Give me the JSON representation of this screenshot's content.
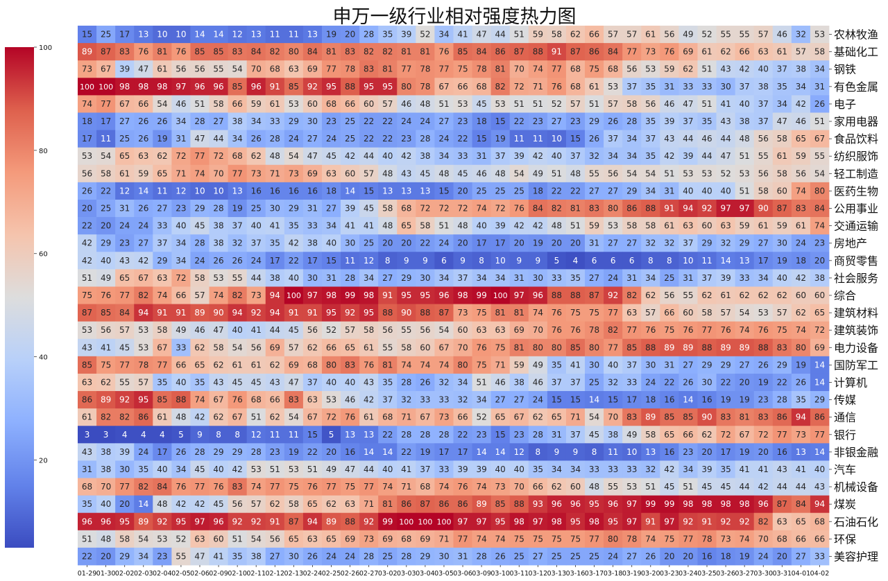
{
  "chart_data": {
    "type": "heatmap",
    "title": "申万一级行业相对强度热力图",
    "colormap": "coolwarm",
    "vmin": 3,
    "vmax": 100,
    "colorbar_ticks": [
      20,
      40,
      60,
      80,
      100
    ],
    "x": [
      "01-29",
      "01-30",
      "02-02",
      "02-03",
      "02-04",
      "02-05",
      "02-06",
      "02-09",
      "02-10",
      "02-11",
      "02-12",
      "02-13",
      "02-24",
      "02-25",
      "02-26",
      "02-27",
      "03-02",
      "03-03",
      "03-04",
      "03-05",
      "03-06",
      "03-09",
      "03-10",
      "03-11",
      "03-12",
      "03-13",
      "03-16",
      "03-17",
      "03-18",
      "03-19",
      "03-20",
      "03-23",
      "03-24",
      "03-25",
      "03-26",
      "03-27",
      "03-30",
      "03-31",
      "04-01",
      "04-02"
    ],
    "y": [
      "农林牧渔",
      "基础化工",
      "钢铁",
      "有色金属",
      "电子",
      "家用电器",
      "食品饮料",
      "纺织服饰",
      "轻工制造",
      "医药生物",
      "公用事业",
      "交通运输",
      "房地产",
      "商贸零售",
      "社会服务",
      "综合",
      "建筑材料",
      "建筑装饰",
      "电力设备",
      "国防军工",
      "计算机",
      "传媒",
      "通信",
      "银行",
      "非银金融",
      "汽车",
      "机械设备",
      "煤炭",
      "石油石化",
      "环保",
      "美容护理"
    ],
    "values": [
      [
        15,
        25,
        17,
        13,
        10,
        10,
        14,
        14,
        12,
        13,
        11,
        11,
        13,
        19,
        20,
        28,
        35,
        39,
        52,
        34,
        41,
        47,
        44,
        51,
        59,
        58,
        62,
        66,
        57,
        57,
        61,
        56,
        49,
        52,
        55,
        55,
        57,
        46,
        32,
        53
      ],
      [
        89,
        87,
        83,
        76,
        81,
        76,
        85,
        85,
        83,
        84,
        82,
        80,
        84,
        81,
        83,
        82,
        82,
        81,
        81,
        76,
        85,
        84,
        86,
        87,
        88,
        91,
        87,
        86,
        84,
        77,
        73,
        76,
        69,
        61,
        62,
        66,
        63,
        61,
        57,
        58
      ],
      [
        73,
        67,
        39,
        47,
        61,
        56,
        56,
        55,
        54,
        70,
        68,
        63,
        69,
        77,
        78,
        83,
        81,
        77,
        78,
        77,
        75,
        78,
        81,
        70,
        74,
        77,
        68,
        75,
        68,
        56,
        53,
        59,
        62,
        51,
        43,
        42,
        40,
        37,
        38,
        34
      ],
      [
        100,
        100,
        98,
        98,
        98,
        97,
        96,
        96,
        85,
        96,
        91,
        85,
        92,
        95,
        88,
        95,
        95,
        80,
        78,
        67,
        66,
        68,
        82,
        72,
        71,
        76,
        68,
        61,
        53,
        37,
        35,
        31,
        33,
        33,
        30,
        37,
        38,
        35,
        34,
        31
      ],
      [
        74,
        77,
        67,
        66,
        54,
        46,
        51,
        58,
        66,
        59,
        61,
        53,
        60,
        68,
        66,
        60,
        57,
        46,
        48,
        51,
        53,
        45,
        53,
        51,
        51,
        52,
        57,
        51,
        57,
        58,
        56,
        46,
        47,
        51,
        41,
        40,
        37,
        34,
        42,
        26
      ],
      [
        18,
        17,
        27,
        26,
        26,
        34,
        28,
        27,
        38,
        34,
        33,
        29,
        30,
        23,
        25,
        22,
        22,
        24,
        24,
        27,
        23,
        18,
        15,
        22,
        23,
        27,
        23,
        29,
        26,
        28,
        35,
        39,
        37,
        35,
        43,
        38,
        37,
        47,
        46,
        51
      ],
      [
        17,
        11,
        25,
        26,
        19,
        31,
        47,
        44,
        34,
        26,
        28,
        24,
        27,
        24,
        25,
        22,
        22,
        23,
        28,
        24,
        22,
        15,
        19,
        11,
        11,
        10,
        15,
        26,
        37,
        34,
        37,
        43,
        44,
        46,
        44,
        48,
        56,
        58,
        65,
        67
      ],
      [
        53,
        54,
        65,
        63,
        62,
        72,
        77,
        72,
        68,
        62,
        48,
        54,
        47,
        45,
        42,
        44,
        40,
        42,
        38,
        34,
        33,
        31,
        37,
        39,
        42,
        40,
        37,
        32,
        34,
        34,
        35,
        42,
        39,
        44,
        47,
        51,
        55,
        61,
        59,
        55
      ],
      [
        56,
        58,
        61,
        59,
        65,
        71,
        74,
        70,
        77,
        73,
        71,
        73,
        69,
        63,
        60,
        57,
        48,
        43,
        45,
        48,
        45,
        46,
        48,
        54,
        49,
        51,
        48,
        55,
        56,
        54,
        54,
        51,
        53,
        53,
        52,
        53,
        56,
        58,
        56,
        54
      ],
      [
        26,
        22,
        12,
        14,
        11,
        12,
        10,
        10,
        13,
        16,
        16,
        16,
        16,
        18,
        14,
        15,
        13,
        13,
        13,
        15,
        20,
        25,
        25,
        25,
        18,
        22,
        22,
        27,
        27,
        29,
        34,
        31,
        40,
        40,
        40,
        51,
        58,
        60,
        74,
        80
      ],
      [
        20,
        25,
        31,
        26,
        27,
        23,
        29,
        28,
        19,
        25,
        30,
        29,
        31,
        27,
        39,
        45,
        58,
        68,
        72,
        72,
        72,
        74,
        72,
        76,
        84,
        82,
        81,
        83,
        80,
        86,
        88,
        91,
        94,
        92,
        97,
        97,
        90,
        87,
        83,
        84
      ],
      [
        22,
        20,
        24,
        24,
        33,
        40,
        45,
        38,
        37,
        40,
        41,
        35,
        33,
        34,
        41,
        41,
        48,
        65,
        58,
        51,
        48,
        40,
        39,
        42,
        42,
        48,
        51,
        59,
        53,
        58,
        58,
        61,
        63,
        60,
        63,
        59,
        61,
        59,
        61,
        74
      ],
      [
        42,
        29,
        23,
        27,
        37,
        34,
        28,
        38,
        32,
        37,
        35,
        42,
        38,
        40,
        30,
        25,
        20,
        20,
        22,
        24,
        20,
        17,
        17,
        20,
        19,
        20,
        20,
        31,
        27,
        27,
        32,
        32,
        37,
        29,
        32,
        29,
        27,
        30,
        24,
        23
      ],
      [
        42,
        40,
        43,
        42,
        29,
        34,
        24,
        26,
        26,
        24,
        17,
        22,
        17,
        15,
        11,
        12,
        8,
        9,
        9,
        6,
        9,
        8,
        10,
        9,
        9,
        5,
        4,
        6,
        6,
        6,
        8,
        8,
        10,
        11,
        14,
        13,
        17,
        19,
        18,
        20
      ],
      [
        51,
        49,
        65,
        67,
        63,
        72,
        58,
        53,
        55,
        44,
        38,
        40,
        30,
        31,
        28,
        34,
        27,
        29,
        30,
        34,
        37,
        34,
        34,
        31,
        30,
        33,
        35,
        27,
        24,
        31,
        34,
        25,
        31,
        37,
        39,
        33,
        34,
        40,
        42,
        38
      ],
      [
        75,
        76,
        77,
        82,
        74,
        66,
        57,
        74,
        82,
        73,
        94,
        100,
        97,
        98,
        99,
        98,
        91,
        95,
        95,
        96,
        98,
        99,
        100,
        97,
        96,
        88,
        88,
        87,
        92,
        82,
        62,
        56,
        55,
        62,
        61,
        62,
        62,
        62,
        60,
        60
      ],
      [
        87,
        85,
        84,
        94,
        91,
        91,
        89,
        90,
        94,
        92,
        94,
        91,
        91,
        95,
        92,
        95,
        88,
        90,
        88,
        87,
        73,
        75,
        81,
        81,
        74,
        76,
        75,
        75,
        77,
        63,
        57,
        66,
        60,
        58,
        57,
        54,
        53,
        57,
        62,
        65
      ],
      [
        53,
        56,
        57,
        53,
        58,
        49,
        46,
        47,
        40,
        41,
        44,
        45,
        56,
        52,
        57,
        58,
        56,
        55,
        56,
        54,
        60,
        63,
        63,
        69,
        70,
        76,
        76,
        78,
        82,
        77,
        76,
        75,
        76,
        77,
        76,
        74,
        76,
        75,
        74,
        72
      ],
      [
        43,
        41,
        45,
        53,
        67,
        33,
        62,
        58,
        54,
        56,
        69,
        57,
        62,
        66,
        65,
        61,
        55,
        58,
        60,
        67,
        70,
        76,
        75,
        81,
        80,
        80,
        85,
        80,
        77,
        85,
        88,
        89,
        89,
        88,
        89,
        89,
        88,
        83,
        80,
        69
      ],
      [
        85,
        75,
        77,
        78,
        77,
        66,
        65,
        62,
        61,
        61,
        62,
        69,
        68,
        80,
        83,
        76,
        81,
        74,
        74,
        74,
        80,
        75,
        71,
        59,
        49,
        35,
        41,
        30,
        40,
        37,
        30,
        31,
        27,
        29,
        29,
        27,
        26,
        29,
        19,
        14
      ],
      [
        63,
        62,
        55,
        57,
        35,
        40,
        35,
        43,
        45,
        45,
        43,
        47,
        37,
        40,
        40,
        43,
        35,
        28,
        26,
        32,
        34,
        51,
        46,
        38,
        46,
        37,
        37,
        25,
        32,
        33,
        24,
        22,
        26,
        30,
        22,
        20,
        19,
        22,
        26,
        14
      ],
      [
        86,
        89,
        92,
        95,
        85,
        88,
        74,
        67,
        76,
        68,
        66,
        83,
        63,
        53,
        46,
        42,
        37,
        32,
        33,
        33,
        32,
        34,
        27,
        27,
        24,
        15,
        15,
        14,
        15,
        17,
        18,
        16,
        14,
        16,
        19,
        19,
        23,
        28,
        35,
        29
      ],
      [
        61,
        82,
        82,
        86,
        61,
        48,
        42,
        62,
        67,
        51,
        62,
        54,
        67,
        72,
        76,
        61,
        68,
        71,
        67,
        73,
        66,
        52,
        65,
        67,
        62,
        65,
        71,
        54,
        70,
        83,
        89,
        85,
        85,
        90,
        83,
        81,
        83,
        86,
        94,
        86
      ],
      [
        3,
        3,
        4,
        4,
        4,
        5,
        9,
        8,
        8,
        12,
        11,
        11,
        15,
        5,
        13,
        13,
        22,
        28,
        28,
        28,
        22,
        23,
        15,
        23,
        28,
        31,
        37,
        45,
        38,
        49,
        58,
        65,
        66,
        62,
        72,
        67,
        72,
        77,
        73,
        77
      ],
      [
        43,
        38,
        39,
        24,
        17,
        26,
        28,
        29,
        29,
        28,
        23,
        19,
        22,
        20,
        16,
        14,
        14,
        22,
        19,
        17,
        17,
        14,
        14,
        12,
        8,
        9,
        9,
        8,
        11,
        10,
        13,
        16,
        23,
        20,
        17,
        19,
        20,
        16,
        13,
        14
      ],
      [
        31,
        38,
        30,
        35,
        40,
        34,
        45,
        40,
        42,
        53,
        51,
        53,
        51,
        49,
        47,
        44,
        40,
        41,
        37,
        33,
        39,
        39,
        40,
        40,
        35,
        34,
        34,
        33,
        33,
        33,
        32,
        42,
        34,
        39,
        35,
        41,
        41,
        43,
        41,
        40
      ],
      [
        68,
        70,
        77,
        82,
        84,
        76,
        77,
        76,
        83,
        74,
        77,
        75,
        76,
        77,
        75,
        77,
        74,
        71,
        68,
        74,
        76,
        74,
        73,
        70,
        66,
        62,
        60,
        48,
        55,
        53,
        51,
        45,
        51,
        45,
        45,
        44,
        42,
        44,
        44,
        43
      ],
      [
        35,
        40,
        20,
        14,
        48,
        42,
        42,
        45,
        56,
        57,
        62,
        58,
        65,
        62,
        63,
        71,
        81,
        86,
        87,
        86,
        86,
        89,
        85,
        88,
        93,
        96,
        96,
        95,
        96,
        97,
        99,
        99,
        98,
        98,
        98,
        98,
        96,
        87,
        84,
        94
      ],
      [
        96,
        96,
        95,
        89,
        92,
        95,
        97,
        96,
        92,
        92,
        91,
        87,
        94,
        89,
        88,
        92,
        99,
        100,
        100,
        100,
        97,
        97,
        95,
        98,
        97,
        98,
        95,
        98,
        95,
        97,
        91,
        97,
        92,
        91,
        92,
        92,
        82,
        63,
        65,
        68
      ],
      [
        51,
        48,
        58,
        54,
        53,
        52,
        63,
        60,
        51,
        54,
        56,
        65,
        63,
        65,
        69,
        73,
        69,
        68,
        69,
        71,
        77,
        74,
        74,
        75,
        75,
        75,
        75,
        77,
        80,
        78,
        74,
        75,
        77,
        78,
        73,
        74,
        70,
        68,
        66,
        66
      ],
      [
        22,
        20,
        29,
        34,
        23,
        55,
        47,
        41,
        35,
        38,
        27,
        30,
        26,
        24,
        24,
        28,
        25,
        28,
        29,
        30,
        31,
        28,
        26,
        25,
        27,
        25,
        25,
        25,
        24,
        27,
        26,
        20,
        20,
        16,
        18,
        19,
        24,
        20,
        27,
        33
      ]
    ]
  }
}
